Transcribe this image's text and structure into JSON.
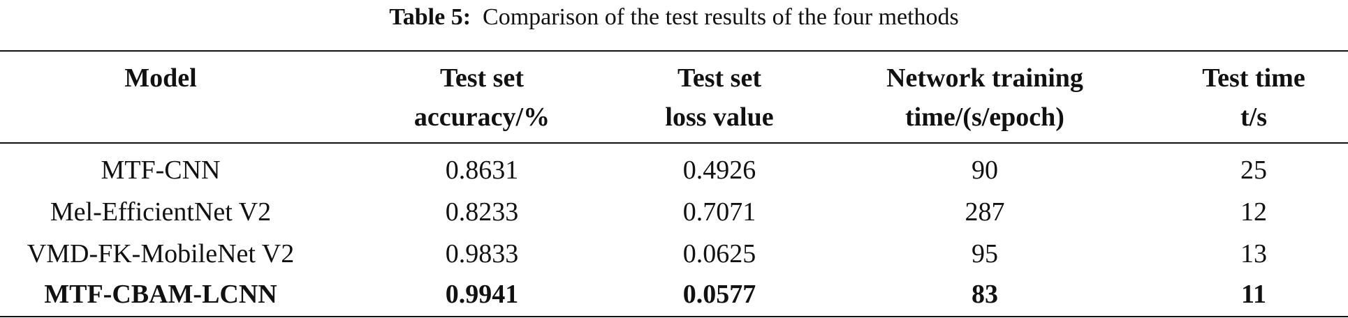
{
  "caption": {
    "label": "Table 5:",
    "text": "Comparison of the test results of the four methods"
  },
  "table": {
    "headers": [
      [
        "Model"
      ],
      [
        "Test set",
        "accuracy/%"
      ],
      [
        "Test set",
        "loss value"
      ],
      [
        "Network training",
        "time/(s/epoch)"
      ],
      [
        "Test time",
        "t/s"
      ]
    ],
    "rows": [
      [
        "MTF-CNN",
        "0.8631",
        "0.4926",
        "90",
        "25"
      ],
      [
        "Mel-EfficientNet V2",
        "0.8233",
        "0.7071",
        "287",
        "12"
      ],
      [
        "VMD-FK-MobileNet V2",
        "0.9833",
        "0.0625",
        "95",
        "13"
      ],
      [
        "MTF-CBAM-LCNN",
        "0.9941",
        "0.0577",
        "83",
        "11"
      ]
    ],
    "bold_row_index": 3
  }
}
